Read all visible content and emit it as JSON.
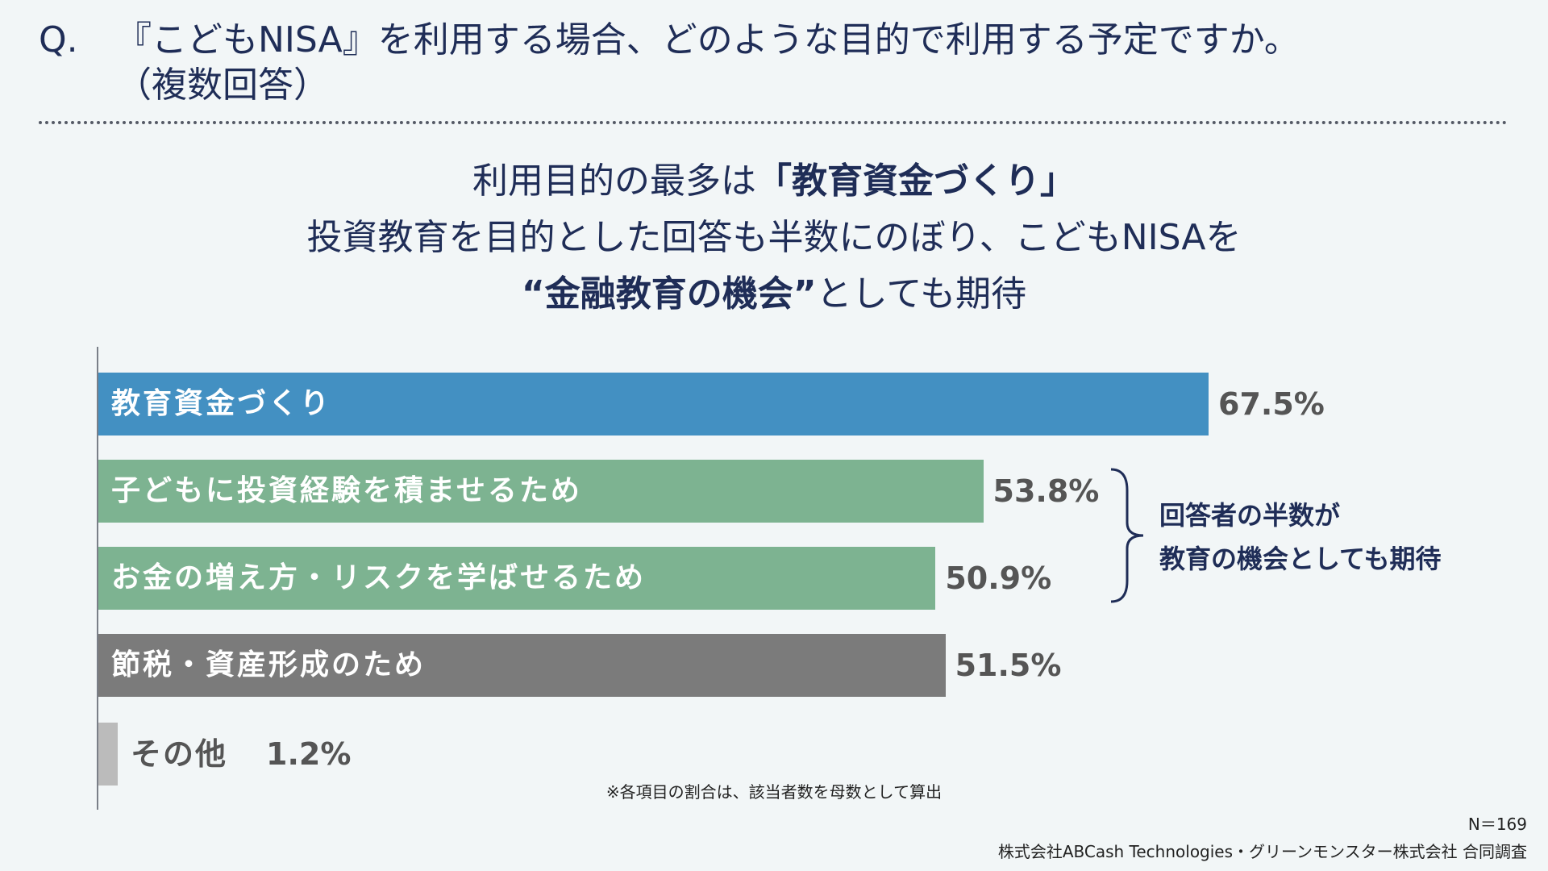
{
  "question": {
    "prefix": "Q.",
    "line1": "『こどもNISA』を利用する場合、どのような目的で利用する予定ですか。",
    "line2": "（複数回答）"
  },
  "headline": {
    "line1_pre": "利用目的の最多は",
    "line1_bold": "「教育資金づくり」",
    "line2": "投資教育を目的とした回答も半数にのぼり、こどもNISAを",
    "line3_bold": "“金融教育の機会”",
    "line3_post": "としても期待"
  },
  "annotation": {
    "line1": "回答者の半数が",
    "line2": "教育の機会としても期待"
  },
  "footnote": "※各項目の割合は、該当者数を母数として算出",
  "sample_size": "N＝169",
  "credit": "株式会社ABCash Technologies・グリーンモンスター株式会社 合同調査",
  "colors": {
    "blue": "#4390c2",
    "green": "#7db391",
    "gray": "#7b7b7b",
    "light_gray": "#bbbbbb"
  },
  "chart_data": {
    "type": "bar",
    "orientation": "horizontal",
    "unit": "%",
    "xlim": [
      0,
      100
    ],
    "categories": [
      "教育資金づくり",
      "子どもに投資経験を積ませるため",
      "お金の増え方・リスクを学ばせるため",
      "節税・資産形成のため",
      "その他"
    ],
    "values": [
      67.5,
      53.8,
      50.9,
      51.5,
      1.2
    ],
    "value_labels": [
      "67.5%",
      "53.8%",
      "50.9%",
      "51.5%",
      "1.2%"
    ],
    "bar_colors": [
      "#4390c2",
      "#7db391",
      "#7db391",
      "#7b7b7b",
      "#bbbbbb"
    ]
  }
}
